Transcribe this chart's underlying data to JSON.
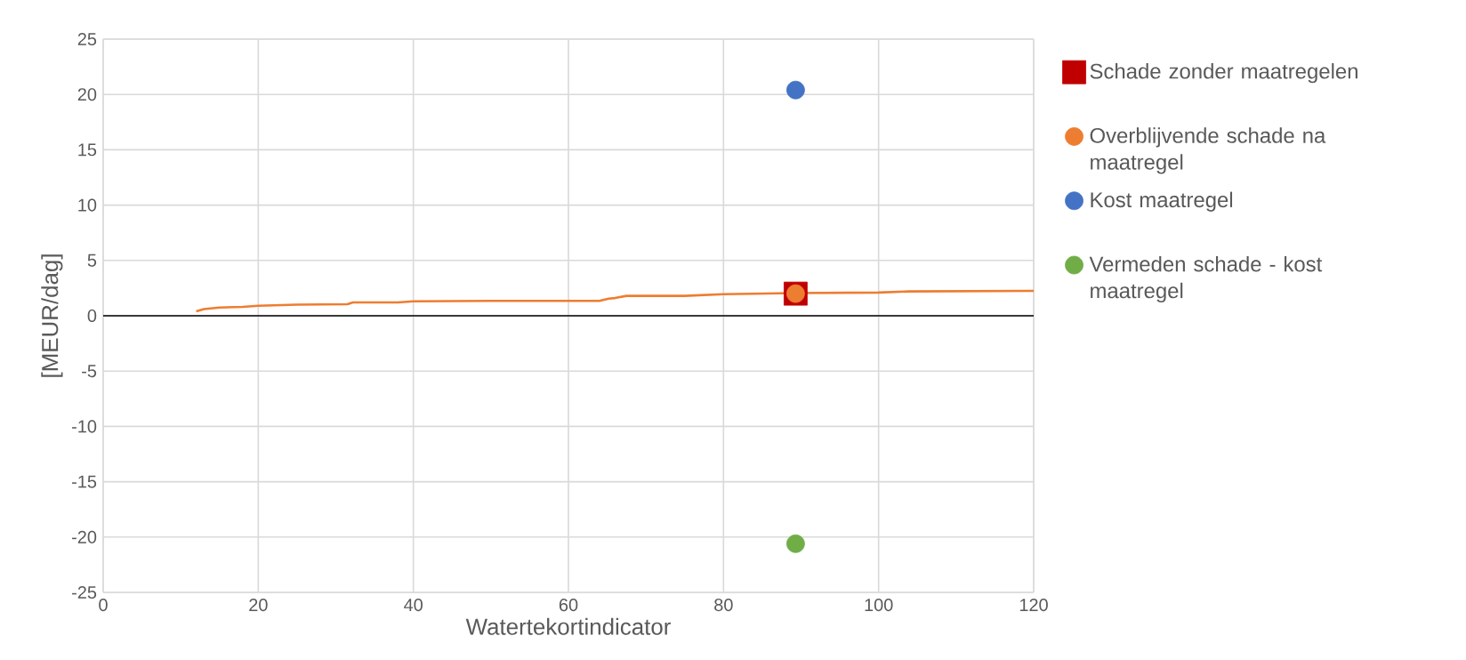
{
  "chart_data": {
    "type": "scatter",
    "xlabel": "Watertekortindicator",
    "ylabel": "[MEUR/dag]",
    "xlim": [
      0,
      120
    ],
    "xticks": [
      0,
      20,
      40,
      60,
      80,
      100,
      120
    ],
    "ylim": [
      -25,
      25
    ],
    "yticks": [
      -25,
      -20,
      -15,
      -10,
      -5,
      0,
      5,
      10,
      15,
      20,
      25
    ],
    "grid": true,
    "legend": "right",
    "ref_lines": [
      {
        "axis": "y",
        "value": 0,
        "color": "#000000"
      }
    ],
    "series": [
      {
        "type": "line",
        "color": "#ed7d31",
        "marker": "none",
        "x": [
          12,
          13,
          15,
          18,
          20,
          25,
          31.5,
          32.2,
          38,
          40,
          50,
          64,
          65.2,
          66,
          67.5,
          75,
          80,
          89,
          100,
          104,
          120
        ],
        "values": [
          0.4,
          0.6,
          0.75,
          0.8,
          0.9,
          1.0,
          1.05,
          1.2,
          1.2,
          1.3,
          1.35,
          1.35,
          1.55,
          1.6,
          1.8,
          1.8,
          1.95,
          2.05,
          2.1,
          2.2,
          2.25
        ]
      },
      {
        "name": "Schade zonder maatregelen",
        "color": "#c00000",
        "marker": "square",
        "x": [
          89.3
        ],
        "values": [
          2.0
        ]
      },
      {
        "name": "Overblijvende schade na maatregel",
        "color": "#ed7d31",
        "marker": "circle",
        "x": [
          89.3
        ],
        "values": [
          2.0
        ]
      },
      {
        "name": "Kost maatregel",
        "color": "#4472c4",
        "marker": "circle",
        "x": [
          89.3
        ],
        "values": [
          20.4
        ]
      },
      {
        "name": "Vermeden schade - kost maatregel",
        "color": "#70ad47",
        "marker": "circle",
        "x": [
          89.3
        ],
        "values": [
          -20.6
        ]
      }
    ]
  }
}
